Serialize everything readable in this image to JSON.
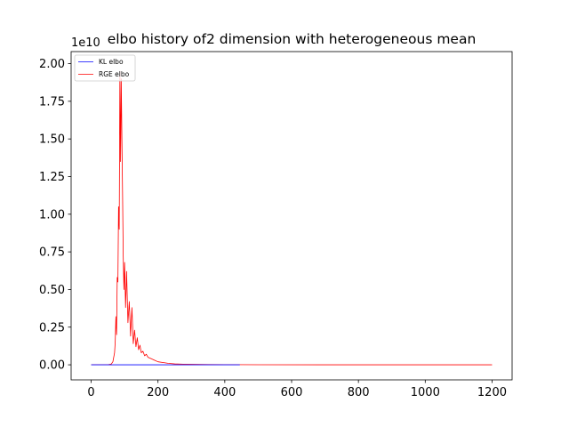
{
  "chart_data": {
    "type": "line",
    "title": "elbo history of2 dimension with heterogeneous mean",
    "xlabel": "",
    "ylabel": "",
    "y_offset_label": "1e10",
    "y_multiplier": 10000000000,
    "xlim": [
      -60,
      1260
    ],
    "ylim": [
      -0.1,
      2.08
    ],
    "xticks": [
      0,
      200,
      400,
      600,
      800,
      1000,
      1200
    ],
    "xtick_labels": [
      "0",
      "200",
      "400",
      "600",
      "800",
      "1000",
      "1200"
    ],
    "yticks": [
      0.0,
      0.25,
      0.5,
      0.75,
      1.0,
      1.25,
      1.5,
      1.75,
      2.0
    ],
    "ytick_labels": [
      "0.00",
      "0.25",
      "0.50",
      "0.75",
      "1.00",
      "1.25",
      "1.50",
      "1.75",
      "2.00"
    ],
    "grid": false,
    "legend_position": "upper-left",
    "series": [
      {
        "name": "KL elbo",
        "color": "#0000ff",
        "x": [
          0,
          100,
          200,
          300,
          445
        ],
        "y": [
          0.0,
          0.0,
          0.0,
          0.0,
          0.0
        ]
      },
      {
        "name": "RGE elbo",
        "color": "#ff0000",
        "x": [
          0,
          50,
          60,
          65,
          70,
          72,
          74,
          76,
          78,
          80,
          82,
          84,
          86,
          88,
          90,
          92,
          94,
          96,
          98,
          100,
          103,
          106,
          110,
          114,
          118,
          122,
          126,
          130,
          134,
          138,
          142,
          146,
          150,
          155,
          160,
          165,
          170,
          180,
          190,
          200,
          215,
          230,
          250,
          275,
          300,
          350,
          400,
          500,
          700,
          900,
          1200
        ],
        "y": [
          0.0,
          0.0,
          0.005,
          0.02,
          0.08,
          0.15,
          0.32,
          0.2,
          0.58,
          0.55,
          1.05,
          0.9,
          1.95,
          1.35,
          1.9,
          1.5,
          1.13,
          0.72,
          0.5,
          0.68,
          0.38,
          0.62,
          0.28,
          0.42,
          0.19,
          0.38,
          0.14,
          0.23,
          0.12,
          0.18,
          0.1,
          0.13,
          0.08,
          0.09,
          0.06,
          0.07,
          0.05,
          0.04,
          0.03,
          0.02,
          0.015,
          0.01,
          0.006,
          0.004,
          0.003,
          0.002,
          0.001,
          0.0005,
          0.0002,
          0.0001,
          0.0
        ]
      }
    ]
  }
}
